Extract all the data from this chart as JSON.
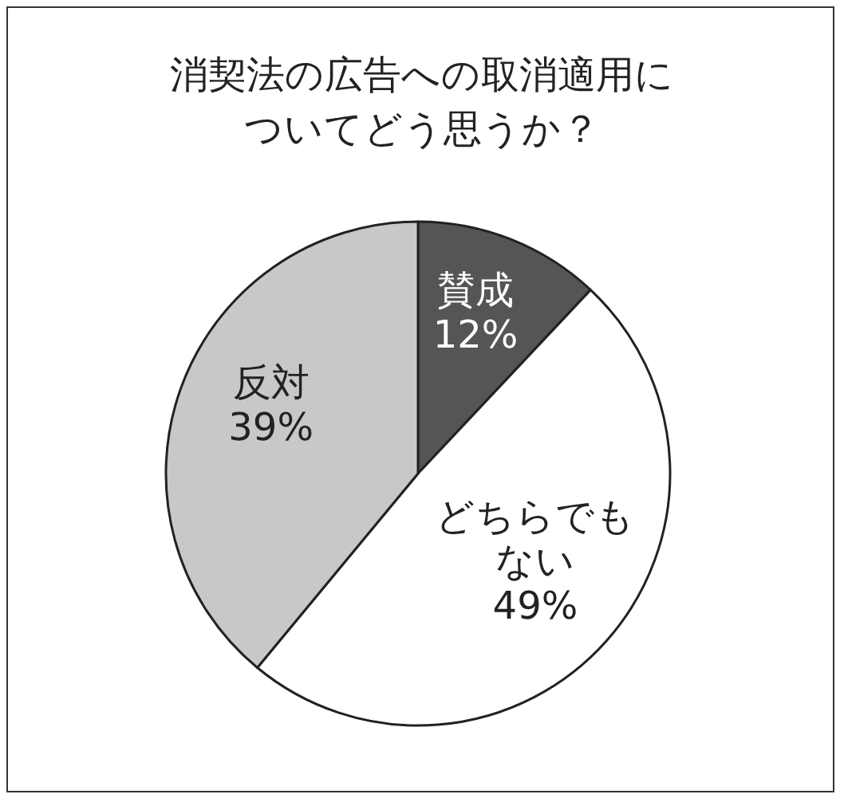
{
  "chart_data": {
    "type": "pie",
    "title": "消契法の広告への取消適用についてどう思うか？",
    "categories": [
      "賛成",
      "どちらでもない",
      "反対"
    ],
    "values": [
      12,
      49,
      39
    ],
    "colors": [
      "#555555",
      "#ffffff",
      "#c8c8c8"
    ],
    "value_labels": [
      "12%",
      "49%",
      "39%"
    ]
  }
}
